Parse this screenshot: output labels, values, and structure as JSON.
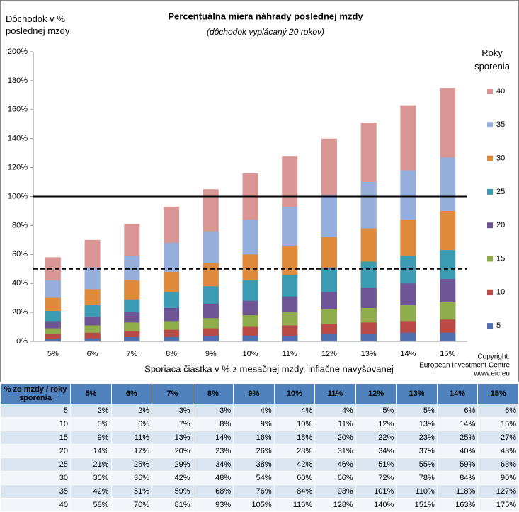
{
  "chart_data": {
    "type": "bar",
    "overlay": true,
    "title": "Percentuálna miera náhrady poslednej mzdy",
    "subtitle": "(dôchodok vyplácaný 20 rokov)",
    "y_label": "Dôchodok  v  % poslednej mzdy",
    "x_label": "Sporiaca čiastka v % z mesačnej mzdy, inflačne navyšovanej",
    "legend_title": "Roky sporenia",
    "legend": "right",
    "credits": [
      "Copyright:",
      "European Investment Centre",
      "www.eic.eu"
    ],
    "table_header": "% zo mzdy  /  roky sporenia",
    "categories": [
      "5%",
      "6%",
      "7%",
      "8%",
      "9%",
      "10%",
      "11%",
      "12%",
      "13%",
      "14%",
      "15%"
    ],
    "ylim": [
      0,
      200
    ],
    "yticks": [
      {
        "value": 0,
        "label": "0%"
      },
      {
        "value": 20,
        "label": "20%"
      },
      {
        "value": 40,
        "label": "40%"
      },
      {
        "value": 60,
        "label": "60%"
      },
      {
        "value": 80,
        "label": "80%"
      },
      {
        "value": 100,
        "label": "100%"
      },
      {
        "value": 120,
        "label": "120%"
      },
      {
        "value": 140,
        "label": "140%"
      },
      {
        "value": 160,
        "label": "160%"
      },
      {
        "value": 180,
        "label": "180%"
      },
      {
        "value": 200,
        "label": "200%"
      }
    ],
    "reference_lines": [
      {
        "value": 100,
        "style": "solid"
      },
      {
        "value": 50,
        "style": "dashed"
      }
    ],
    "series": [
      {
        "name": "5",
        "color": "#4f6fae",
        "values": [
          2,
          2,
          3,
          3,
          4,
          4,
          4,
          5,
          5,
          6,
          6
        ],
        "value_labels": [
          "2%",
          "2%",
          "3%",
          "3%",
          "4%",
          "4%",
          "4%",
          "5%",
          "5%",
          "6%",
          "6%"
        ]
      },
      {
        "name": "10",
        "color": "#b94a48",
        "values": [
          5,
          6,
          7,
          8,
          9,
          10,
          11,
          12,
          13,
          14,
          15
        ],
        "value_labels": [
          "5%",
          "6%",
          "7%",
          "8%",
          "9%",
          "10%",
          "11%",
          "12%",
          "13%",
          "14%",
          "15%"
        ]
      },
      {
        "name": "15",
        "color": "#8fad4a",
        "values": [
          9,
          11,
          13,
          14,
          16,
          18,
          20,
          22,
          23,
          25,
          27
        ],
        "value_labels": [
          "9%",
          "11%",
          "13%",
          "14%",
          "16%",
          "18%",
          "20%",
          "22%",
          "23%",
          "25%",
          "27%"
        ]
      },
      {
        "name": "20",
        "color": "#6f5596",
        "values": [
          14,
          17,
          20,
          23,
          26,
          28,
          31,
          34,
          37,
          40,
          43
        ],
        "value_labels": [
          "14%",
          "17%",
          "20%",
          "23%",
          "26%",
          "28%",
          "31%",
          "34%",
          "37%",
          "40%",
          "43%"
        ]
      },
      {
        "name": "25",
        "color": "#3a9bb3",
        "values": [
          21,
          25,
          29,
          34,
          38,
          42,
          46,
          51,
          55,
          59,
          63
        ],
        "value_labels": [
          "21%",
          "25%",
          "29%",
          "34%",
          "38%",
          "42%",
          "46%",
          "51%",
          "55%",
          "59%",
          "63%"
        ]
      },
      {
        "name": "30",
        "color": "#e08a3c",
        "values": [
          30,
          36,
          42,
          48,
          54,
          60,
          66,
          72,
          78,
          84,
          90
        ],
        "value_labels": [
          "30%",
          "36%",
          "42%",
          "48%",
          "54%",
          "60%",
          "66%",
          "72%",
          "78%",
          "84%",
          "90%"
        ]
      },
      {
        "name": "35",
        "color": "#95aedc",
        "values": [
          42,
          51,
          59,
          68,
          76,
          84,
          93,
          101,
          110,
          118,
          127
        ],
        "value_labels": [
          "42%",
          "51%",
          "59%",
          "68%",
          "76%",
          "84%",
          "93%",
          "101%",
          "110%",
          "118%",
          "127%"
        ]
      },
      {
        "name": "40",
        "color": "#d99694",
        "values": [
          58,
          70,
          81,
          93,
          105,
          116,
          128,
          140,
          151,
          163,
          175
        ],
        "value_labels": [
          "58%",
          "70%",
          "81%",
          "93%",
          "105%",
          "116%",
          "128%",
          "140%",
          "151%",
          "163%",
          "175%"
        ]
      }
    ]
  }
}
